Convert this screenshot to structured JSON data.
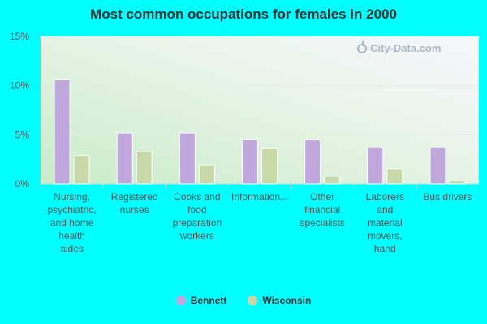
{
  "title": "Most common occupations for females in 2000",
  "watermark": "City-Data.com",
  "colors": {
    "page_background": "#00ffff",
    "bennett": "#c0a8dc",
    "wisconsin": "#c8d8a8",
    "axis_text": "#555555",
    "title_text": "#333333"
  },
  "chart_data": {
    "type": "bar",
    "title": "Most common occupations for females in 2000",
    "xlabel": "",
    "ylabel": "",
    "ylim": [
      0,
      15
    ],
    "yticks": [
      "0%",
      "5%",
      "10%",
      "15%"
    ],
    "ytick_values": [
      0,
      5,
      10,
      15
    ],
    "grid": true,
    "legend_position": "bottom",
    "categories": [
      "Nursing, psychiatric, and home health aides",
      "Registered nurses",
      "Cooks and food preparation workers",
      "Information...",
      "Other financial specialists",
      "Laborers and material movers, hand",
      "Bus drivers"
    ],
    "category_label_lines": [
      [
        "Nursing,",
        "psychiatric,",
        "and home",
        "health",
        "aides"
      ],
      [
        "Registered",
        "nurses"
      ],
      [
        "Cooks and",
        "food",
        "preparation",
        "workers"
      ],
      [
        "Information..."
      ],
      [
        "Other",
        "financial",
        "specialists"
      ],
      [
        "Laborers",
        "and",
        "material",
        "movers,",
        "hand"
      ],
      [
        "Bus drivers"
      ]
    ],
    "series": [
      {
        "name": "Bennett",
        "color": "#c0a8dc",
        "values": [
          10.6,
          5.2,
          5.2,
          4.5,
          4.5,
          3.7,
          3.7
        ]
      },
      {
        "name": "Wisconsin",
        "color": "#c8d8a8",
        "values": [
          2.9,
          3.3,
          1.9,
          3.6,
          0.7,
          1.5,
          0.3
        ]
      }
    ]
  }
}
